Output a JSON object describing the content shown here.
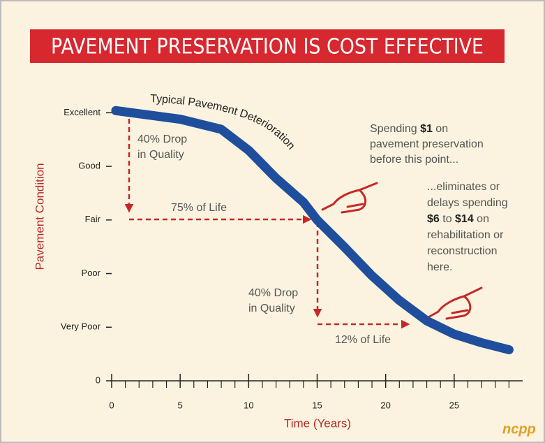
{
  "chart_data": {
    "type": "line",
    "title": "PAVEMENT PRESERVATION IS COST EFFECTIVE",
    "x_label": "Time (Years)",
    "y_label": "Pavement Condition",
    "x": [
      0.3,
      5,
      8,
      10,
      12,
      14,
      15,
      17,
      19,
      21,
      23,
      25,
      27,
      29
    ],
    "series": [
      {
        "name": "Typical Pavement Deterioration",
        "color": "#1f4e9c",
        "values": [
          5.04,
          4.88,
          4.69,
          4.3,
          3.78,
          3.33,
          3.0,
          2.49,
          1.96,
          1.5,
          1.12,
          0.87,
          0.71,
          0.58
        ]
      }
    ],
    "xlim": [
      0,
      30
    ],
    "ylim": [
      0,
      5.2
    ],
    "xticks": [
      0,
      5,
      10,
      15,
      20,
      25
    ],
    "xminor": [
      1,
      2,
      3,
      4,
      6,
      7,
      8,
      9,
      11,
      12,
      13,
      14,
      16,
      17,
      18,
      19,
      21,
      22,
      23,
      24,
      26,
      27,
      28,
      29
    ],
    "yticks": [
      0,
      {
        "value": 1,
        "label": "Very Poor"
      },
      {
        "value": 2,
        "label": "Poor"
      },
      {
        "value": 3,
        "label": "Fair"
      },
      {
        "value": 4,
        "label": "Good"
      },
      {
        "value": 5,
        "label": "Excellent"
      }
    ],
    "annotations": [
      {
        "lines": [
          [
            {
              "text": "40% Drop"
            }
          ],
          [
            {
              "text": "in Quality"
            }
          ]
        ]
      },
      {
        "lines": [
          [
            {
              "text": "75% of Life"
            }
          ]
        ]
      },
      {
        "lines": [
          [
            {
              "text": "40% Drop"
            }
          ],
          [
            {
              "text": "in Quality"
            }
          ]
        ]
      },
      {
        "lines": [
          [
            {
              "text": "12% of Life"
            }
          ]
        ]
      },
      {
        "lines": [
          [
            {
              "text": "Spending "
            },
            {
              "text": "$1",
              "bold": true
            },
            {
              "text": " on"
            }
          ],
          [
            {
              "text": "pavement preservation"
            }
          ],
          [
            {
              "text": "before this point..."
            }
          ]
        ]
      },
      {
        "lines": [
          [
            {
              "text": "...eliminates or"
            }
          ],
          [
            {
              "text": "delays spending"
            }
          ],
          [
            {
              "text": "$6",
              "bold": true
            },
            {
              "text": " to "
            },
            {
              "text": "$14",
              "bold": true
            },
            {
              "text": " on"
            }
          ],
          [
            {
              "text": "rehabilitation or"
            }
          ],
          [
            {
              "text": "reconstruction"
            }
          ],
          [
            {
              "text": "here."
            }
          ]
        ]
      }
    ],
    "logo": "ncpp"
  }
}
